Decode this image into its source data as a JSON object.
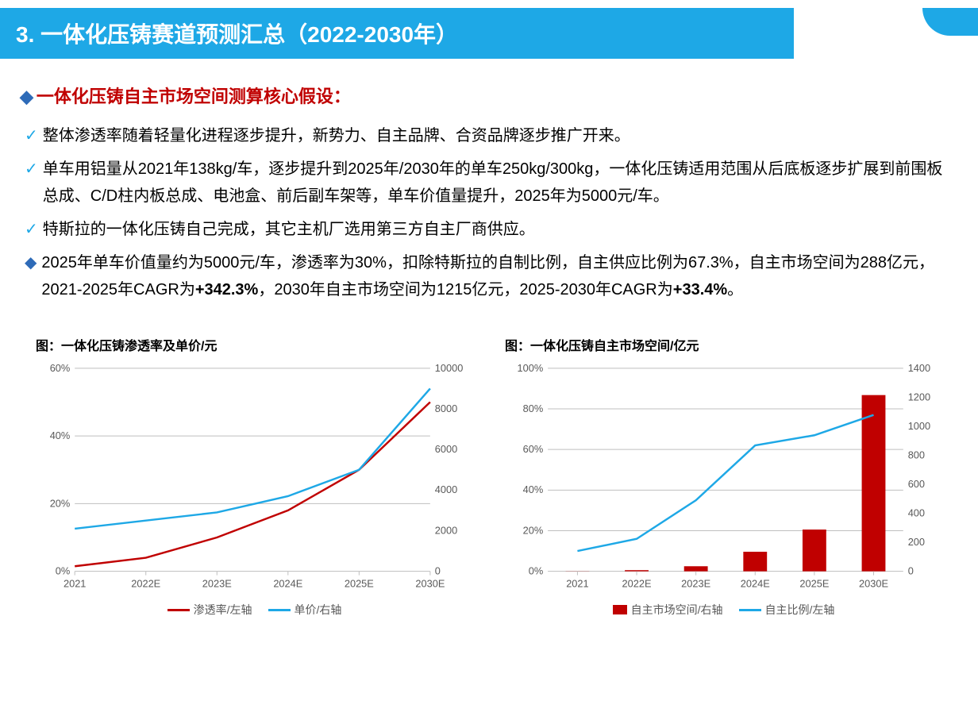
{
  "title": "3. 一体化压铸赛道预测汇总（2022-2030年）",
  "main_header": "一体化压铸自主市场空间测算核心假设：",
  "bullet1": "整体渗透率随着轻量化进程逐步提升，新势力、自主品牌、合资品牌逐步推广开来。",
  "bullet2": "单车用铝量从2021年138kg/车，逐步提升到2025年/2030年的单车250kg/300kg，一体化压铸适用范围从后底板逐步扩展到前围板总成、C/D柱内板总成、电池盒、前后副车架等，单车价值量提升，2025年为5000元/车。",
  "bullet3": "特斯拉的一体化压铸自己完成，其它主机厂选用第三方自主厂商供应。",
  "bullet4_pre": "2025年单车价值量约为5000元/车，渗透率为30%，扣除特斯拉的自制比例，自主供应比例为67.3%，自主市场空间为288亿元，2021-2025年CAGR为",
  "bullet4_bold1": "+342.3%",
  "bullet4_mid": "，2030年自主市场空间为1215亿元，2025-2030年CAGR为",
  "bullet4_bold2": "+33.4%",
  "bullet4_end": "。",
  "chart1": {
    "title": "图：一体化压铸渗透率及单价/元",
    "categories": [
      "2021",
      "2022E",
      "2023E",
      "2024E",
      "2025E",
      "2030E"
    ],
    "penetration": [
      1.5,
      4,
      10,
      18,
      30,
      50
    ],
    "unitprice": [
      2100,
      2500,
      2900,
      3700,
      5000,
      9000
    ],
    "y1_ticks": [
      0,
      20,
      40,
      60
    ],
    "y1_labels": [
      "0%",
      "20%",
      "40%",
      "60%"
    ],
    "y2_ticks": [
      0,
      2000,
      4000,
      6000,
      8000,
      10000
    ],
    "y2_labels": [
      "0",
      "2000",
      "4000",
      "6000",
      "8000",
      "10000"
    ],
    "y1_max": 60,
    "y2_max": 10000,
    "color_penetration": "#c00000",
    "color_unitprice": "#1ea8e6",
    "legend1": "渗透率/左轴",
    "legend2": "单价/右轴",
    "grid_color": "#bfbfbf",
    "axis_color": "#595959"
  },
  "chart2": {
    "title": "图：一体化压铸自主市场空间/亿元",
    "categories": [
      "2021",
      "2022E",
      "2023E",
      "2024E",
      "2025E",
      "2030E"
    ],
    "market_space": [
      1,
      8,
      35,
      135,
      288,
      1215
    ],
    "ratio": [
      10,
      16,
      35,
      62,
      67,
      77
    ],
    "y1_ticks": [
      0,
      20,
      40,
      60,
      80,
      100
    ],
    "y1_labels": [
      "0%",
      "20%",
      "40%",
      "60%",
      "80%",
      "100%"
    ],
    "y2_ticks": [
      0,
      200,
      400,
      600,
      800,
      1000,
      1200,
      1400
    ],
    "y2_labels": [
      "0",
      "200",
      "400",
      "600",
      "800",
      "1000",
      "1200",
      "1400"
    ],
    "y1_max": 100,
    "y2_max": 1400,
    "color_market": "#c00000",
    "color_ratio": "#1ea8e6",
    "legend1": "自主市场空间/右轴",
    "legend2": "自主比例/左轴",
    "grid_color": "#bfbfbf",
    "axis_color": "#595959",
    "bar_width_ratio": 0.4
  }
}
